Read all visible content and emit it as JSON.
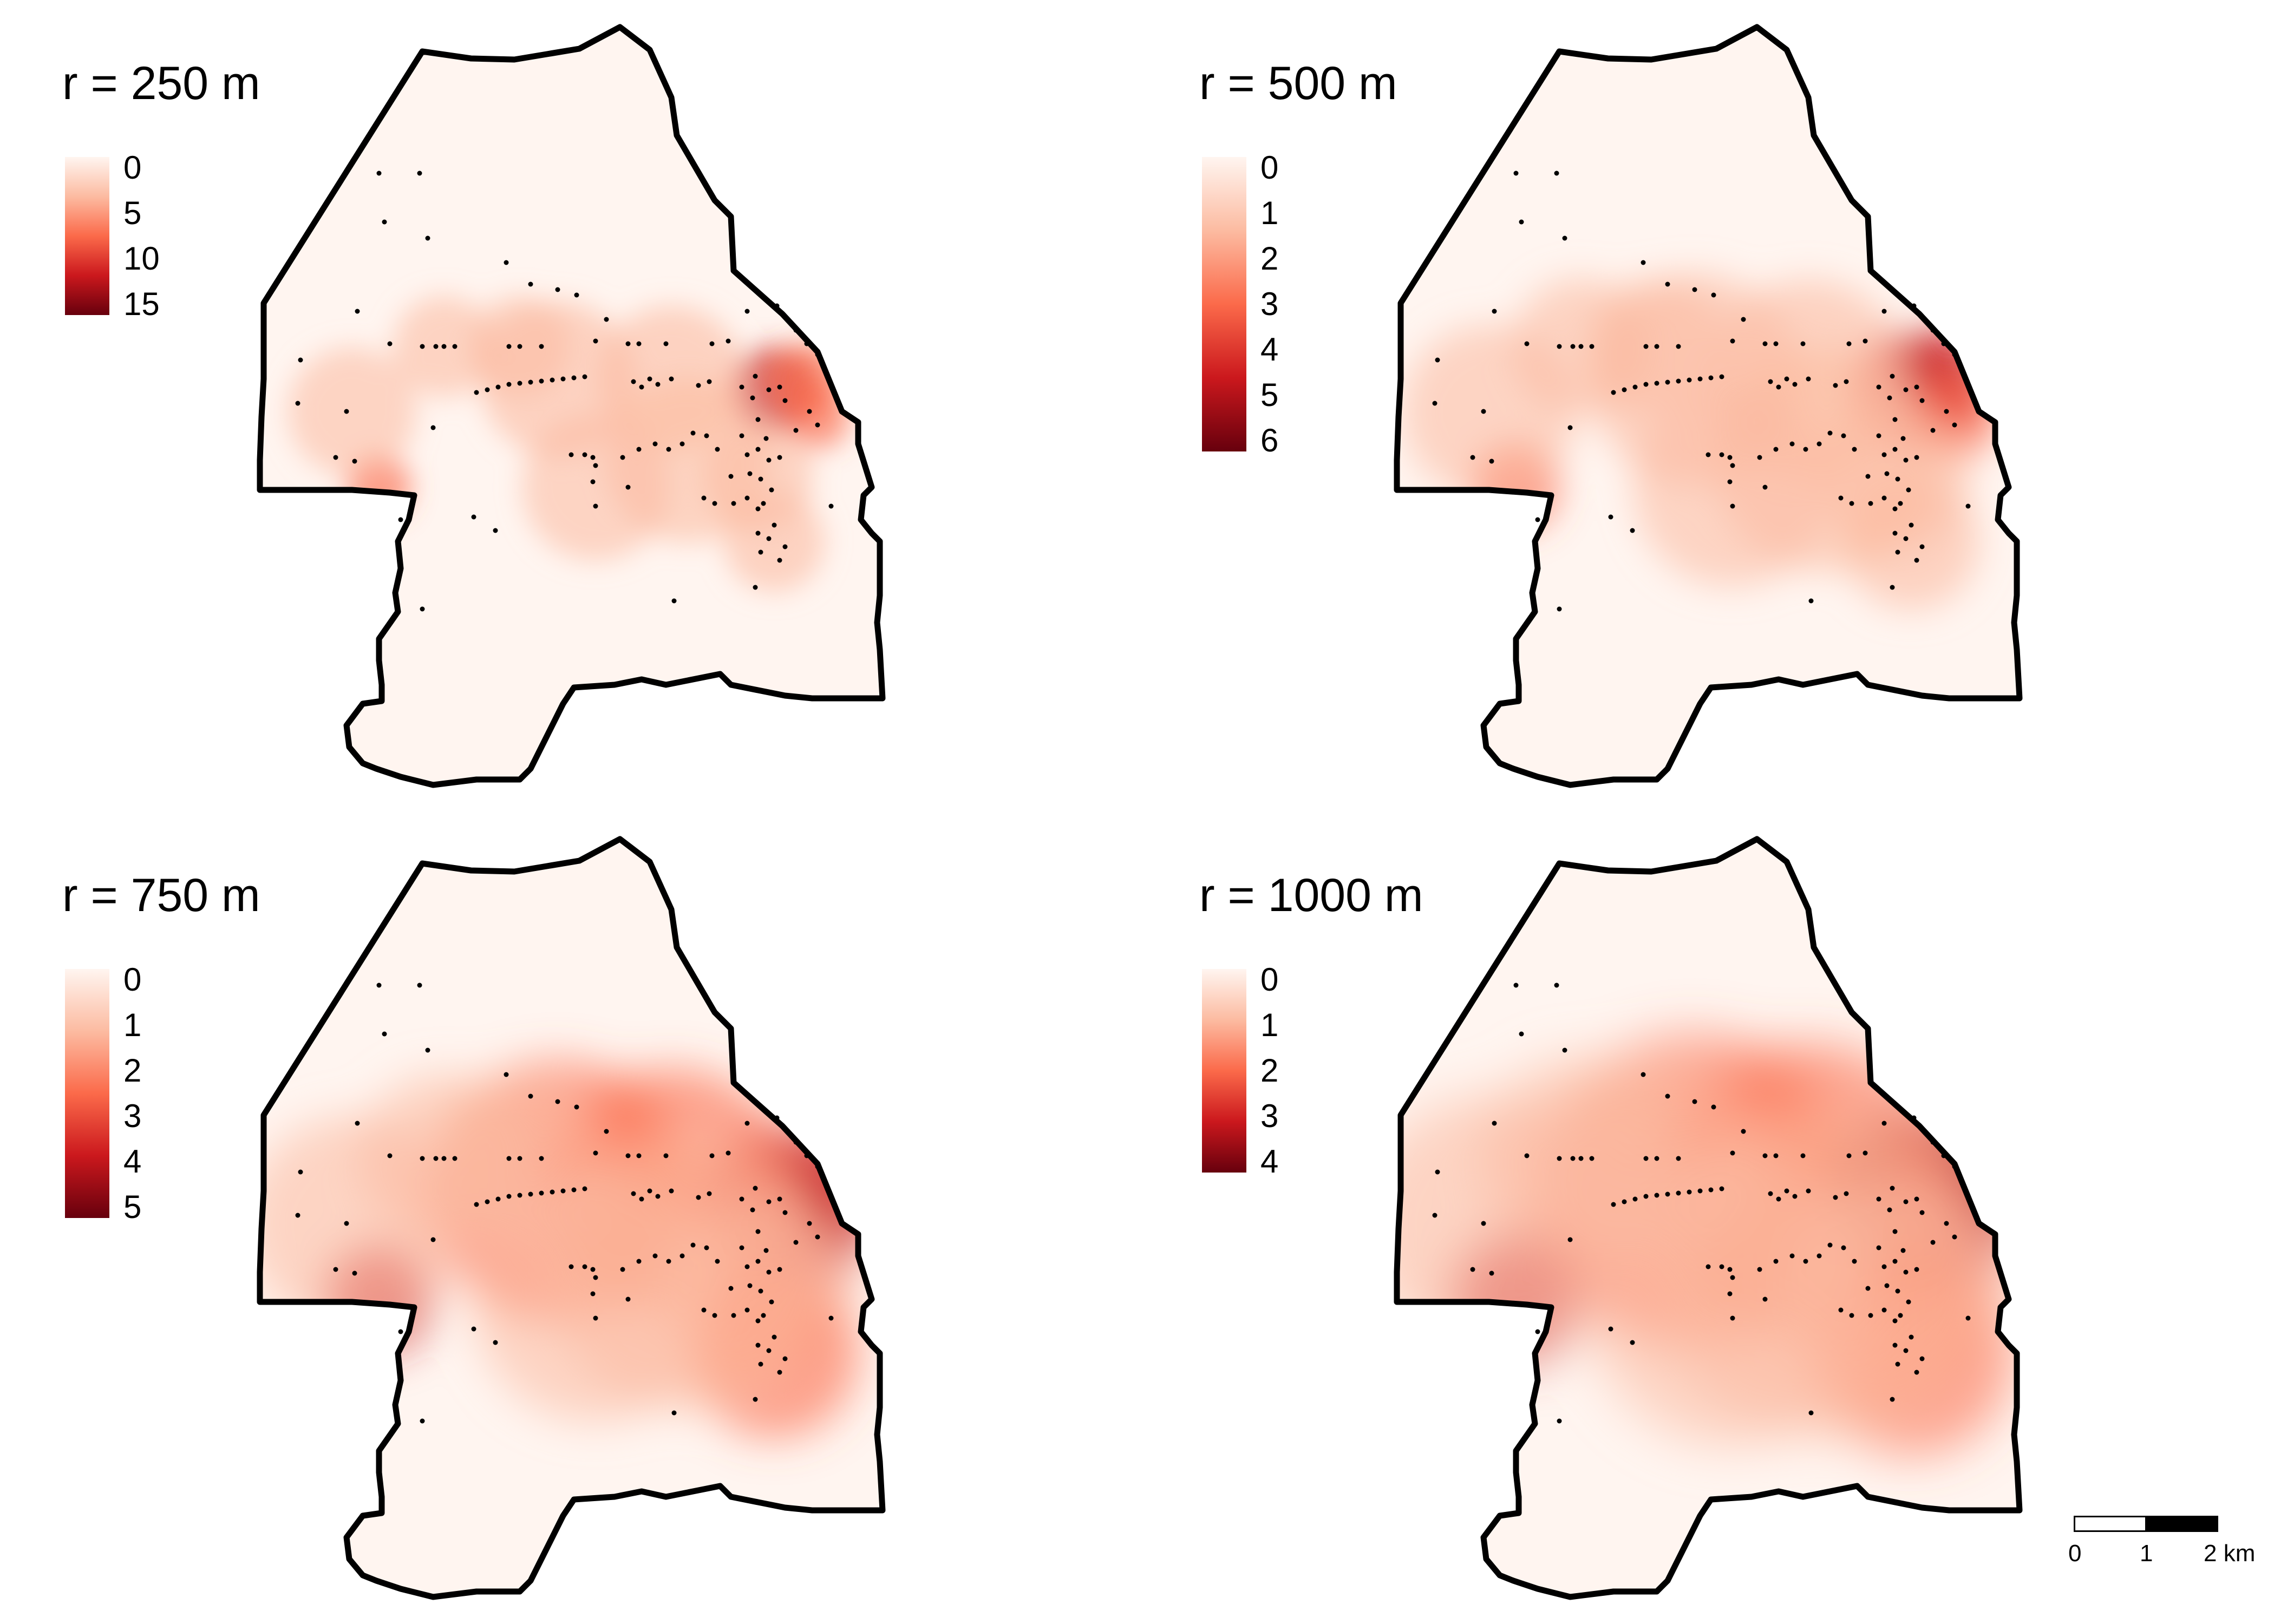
{
  "panels": [
    {
      "title": "r = 250 m",
      "ticks": [
        "0",
        "5",
        "10",
        "15"
      ],
      "hotspot_scale": 0.45
    },
    {
      "title": "r = 500 m",
      "ticks": [
        "0",
        "1",
        "2",
        "3",
        "4",
        "5",
        "6"
      ],
      "hotspot_scale": 1.0
    },
    {
      "title": "r = 750 m",
      "ticks": [
        "0",
        "1",
        "2",
        "3",
        "4",
        "5"
      ],
      "hotspot_scale": 1.5
    },
    {
      "title": "r = 1000 m",
      "ticks": [
        "0",
        "1",
        "2",
        "3",
        "4"
      ],
      "hotspot_scale": 2.0
    }
  ],
  "legend_colors": [
    "#fff5f0",
    "#fcbba1",
    "#fb6a4a",
    "#cb181d",
    "#67000d"
  ],
  "scale_bar": {
    "labels": [
      "0",
      "1",
      "2 km"
    ]
  },
  "colors": {
    "boundary": "#000000",
    "background": "#fff5f0",
    "points": "#000000"
  }
}
